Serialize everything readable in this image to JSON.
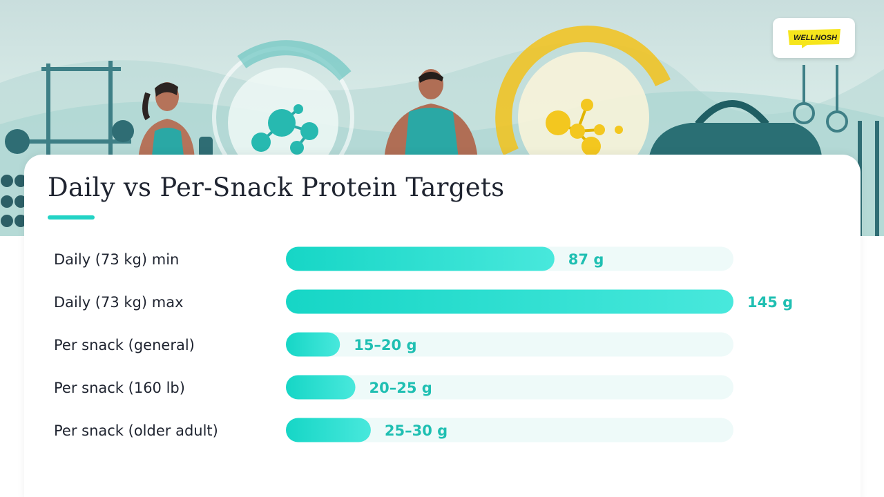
{
  "brand": {
    "logo_text": "WELLNOSH"
  },
  "colors": {
    "accent": "#22d3c5",
    "bar_fill_start": "#16d6c6",
    "bar_fill_end": "#48e8dc",
    "track": "#eefaf9",
    "value_text": "#1fbfb2",
    "logo_yellow": "#f6e51c"
  },
  "chart_data": {
    "type": "bar",
    "orientation": "horizontal",
    "title": "Daily vs Per-Snack Protein Targets",
    "xlim": [
      0,
      145
    ],
    "grid": false,
    "categories": [
      "Daily (73 kg) min",
      "Daily (73 kg) max",
      "Per snack (general)",
      "Per snack (160 lb)",
      "Per snack (older adult)"
    ],
    "values": [
      87,
      145,
      17.5,
      22.5,
      27.5
    ],
    "value_labels": [
      "87 g",
      "145 g",
      "15–20 g",
      "20–25 g",
      "25–30 g"
    ]
  }
}
